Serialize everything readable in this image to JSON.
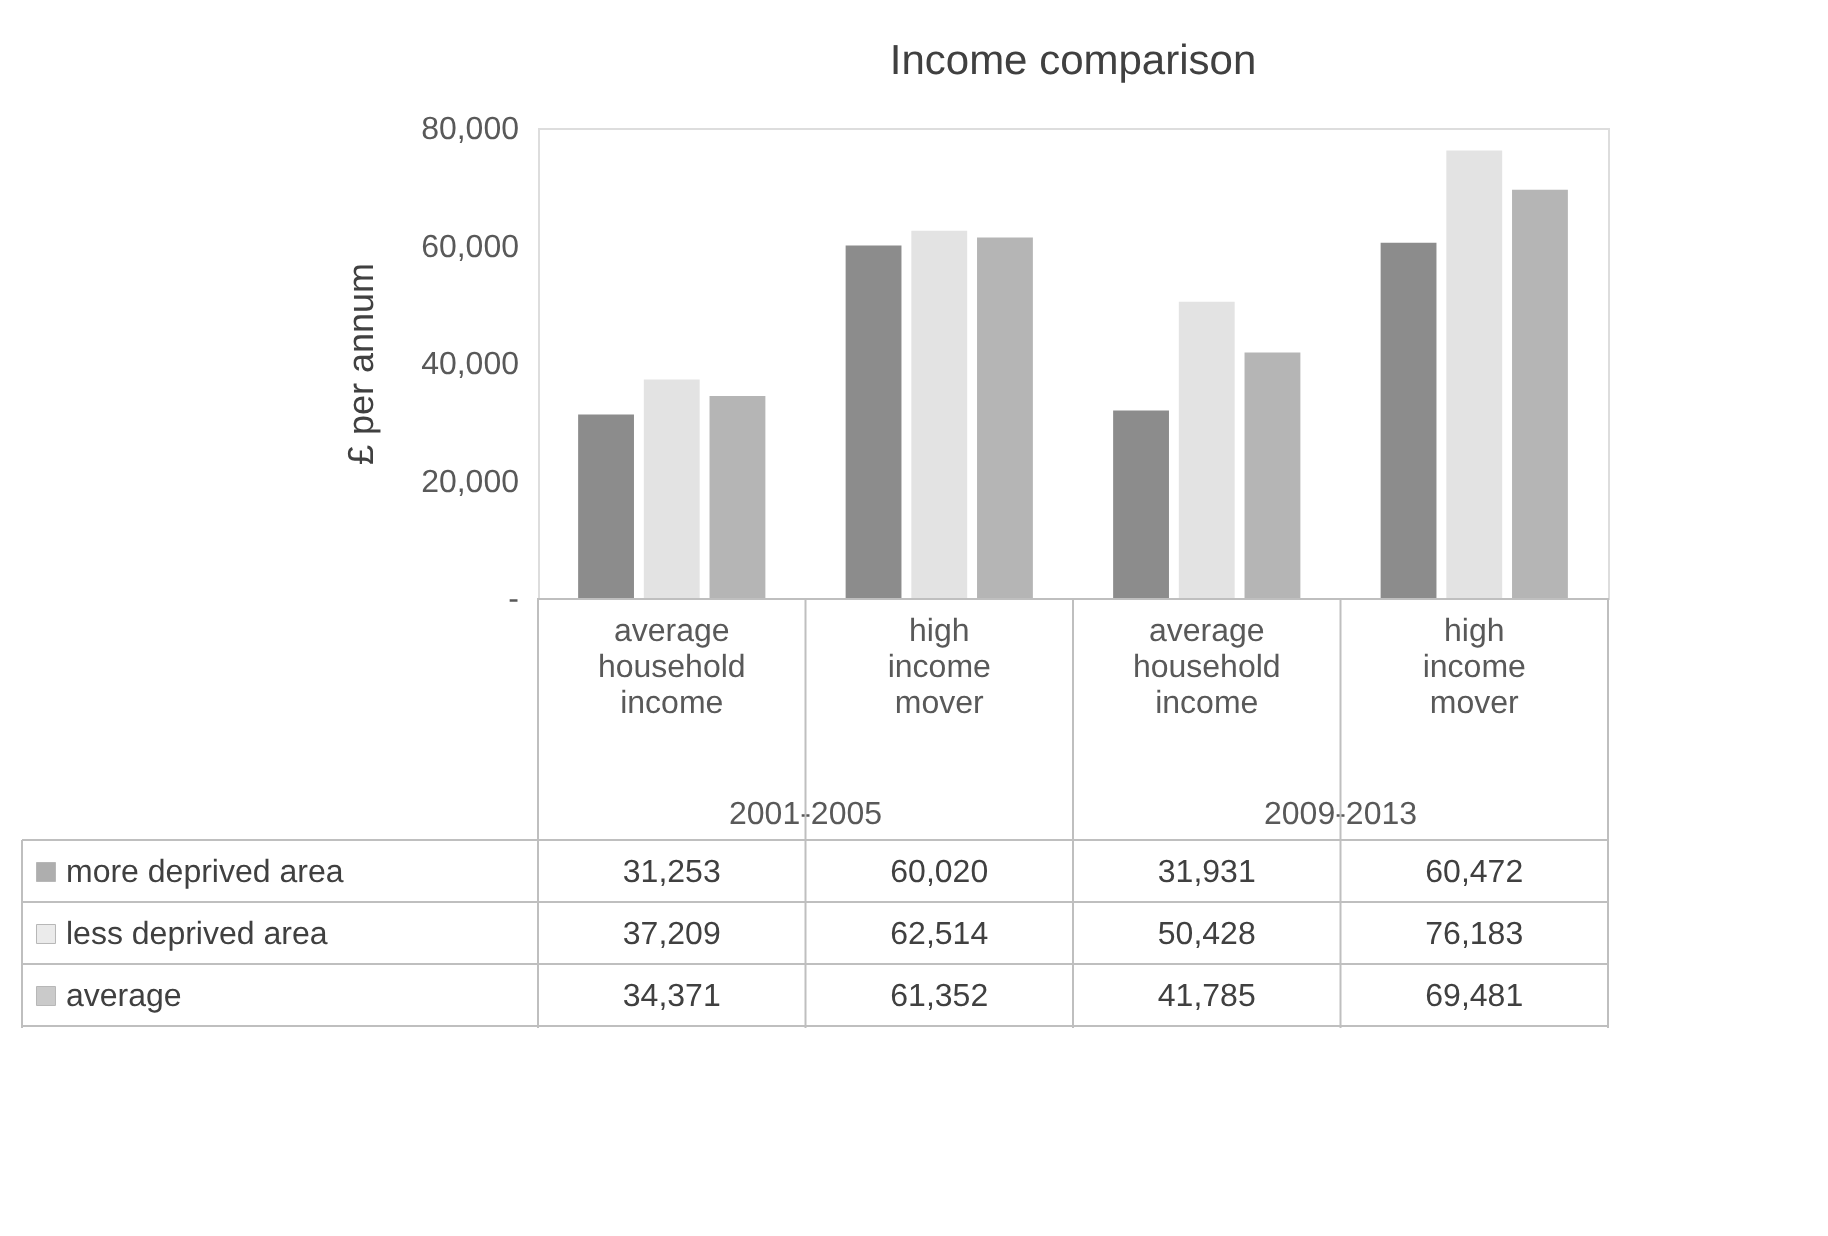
{
  "chart_data": {
    "type": "bar",
    "title": "Income comparison",
    "ylabel": "£ per annum",
    "categories": [
      "average household income",
      "high income mover",
      "average household income",
      "high income mover"
    ],
    "annotations": [
      "2001-2005",
      "2009-2013"
    ],
    "series": [
      {
        "name": "more deprived area",
        "color": "#8c8c8c",
        "values": [
          31253,
          60020,
          31931,
          60472
        ],
        "value_labels": [
          "31,253",
          "60,020",
          "31,931",
          "60,472"
        ]
      },
      {
        "name": "less deprived area",
        "color": "#e3e3e3",
        "values": [
          37209,
          62514,
          50428,
          76183
        ],
        "value_labels": [
          "37,209",
          "62,514",
          "50,428",
          "76,183"
        ]
      },
      {
        "name": "average",
        "color": "#b5b5b5",
        "values": [
          34371,
          61352,
          41785,
          69481
        ],
        "value_labels": [
          "34,371",
          "61,352",
          "41,785",
          "69,481"
        ]
      }
    ],
    "ylim": [
      0,
      80000
    ],
    "yticks": [
      {
        "value": 0,
        "label": "-"
      },
      {
        "value": 20000,
        "label": "20,000"
      },
      {
        "value": 40000,
        "label": "40,000"
      },
      {
        "value": 60000,
        "label": "60,000"
      },
      {
        "value": 80000,
        "label": "80,000"
      }
    ],
    "legend": "bottom",
    "grid": false
  }
}
